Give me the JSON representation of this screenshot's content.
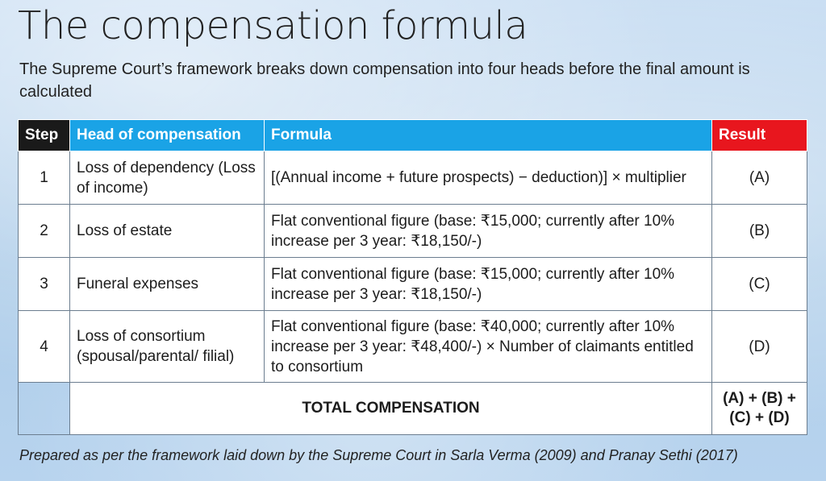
{
  "title": "The compensation formula",
  "subtitle": "The Supreme Court’s framework breaks down compensation into four heads before the final amount is calculated",
  "table": {
    "headers": {
      "step": "Step",
      "head": "Head of compensation",
      "formula": "Formula",
      "result": "Result"
    },
    "header_colors": {
      "step": "#1a1a1a",
      "head": "#1aa3e6",
      "formula": "#1aa3e6",
      "result": "#e8161e"
    },
    "rows": [
      {
        "step": "1",
        "head": "Loss of dependency (Loss of income)",
        "formula": "[(Annual income + future prospects)  − deduction)] × multiplier",
        "result": "(A)"
      },
      {
        "step": "2",
        "head": "Loss of estate",
        "formula": "Flat conventional figure (base: ₹15,000; currently after 10% increase per 3 year: ₹18,150/-)",
        "result": "(B)"
      },
      {
        "step": "3",
        "head": "Funeral expenses",
        "formula": "Flat conventional figure (base: ₹15,000; currently after 10% increase per 3 year: ₹18,150/-)",
        "result": "(C)"
      },
      {
        "step": "4",
        "head": "Loss of consortium (spousal/parental/ filial)",
        "formula": "Flat conventional figure (base: ₹40,000; currently after 10% increase per 3 year: ₹48,400/-) × Number of claim­ants entitled to consortium",
        "result": "(D)"
      }
    ],
    "total": {
      "label": "TOTAL COMPENSATION",
      "result": "(A) + (B) + (C) +  (D)"
    }
  },
  "footnote": "Prepared as per the framework laid down by the Supreme Court in Sarla Verma (2009) and Pranay Sethi (2017)"
}
